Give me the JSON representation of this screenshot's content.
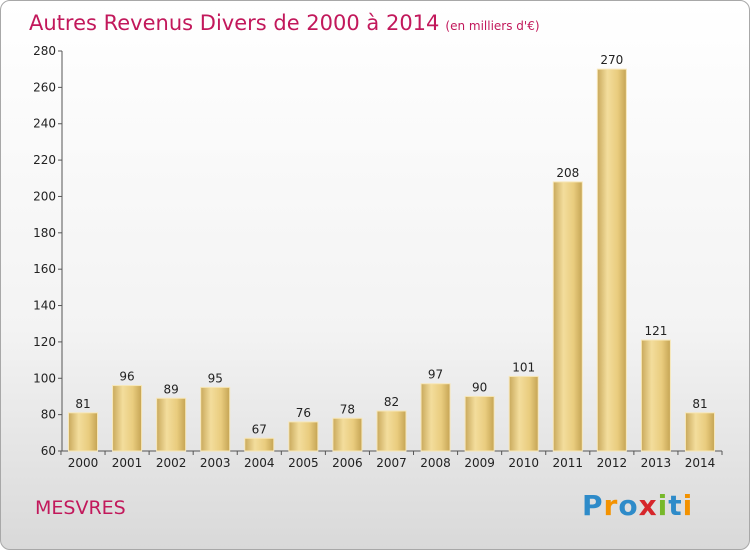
{
  "title": "Autres Revenus Divers de 2000 à 2014",
  "title_unit": "(en milliers d'€)",
  "place": "MESVRES",
  "logo": {
    "text": "Proxiti",
    "letters": [
      {
        "ch": "P",
        "color": "#2e8bc9"
      },
      {
        "ch": "r",
        "color": "#f39200"
      },
      {
        "ch": "o",
        "color": "#2e8bc9"
      },
      {
        "ch": "x",
        "color": "#d6262b"
      },
      {
        "ch": "i",
        "color": "#77b82a"
      },
      {
        "ch": "t",
        "color": "#2e8bc9"
      },
      {
        "ch": "i",
        "color": "#f39200"
      }
    ]
  },
  "chart_data": {
    "type": "bar",
    "categories": [
      "2000",
      "2001",
      "2002",
      "2003",
      "2004",
      "2005",
      "2006",
      "2007",
      "2008",
      "2009",
      "2010",
      "2011",
      "2012",
      "2013",
      "2014"
    ],
    "values": [
      81,
      96,
      89,
      95,
      67,
      76,
      78,
      82,
      97,
      90,
      101,
      208,
      270,
      121,
      81
    ],
    "title": "Autres Revenus Divers de 2000 à 2014",
    "xlabel": "",
    "ylabel": "",
    "ylim": [
      60,
      280
    ],
    "yticks": [
      60,
      80,
      100,
      120,
      140,
      160,
      180,
      200,
      220,
      240,
      260,
      280
    ],
    "grid": false,
    "legend": "none",
    "bar_color": "#e8c878"
  }
}
